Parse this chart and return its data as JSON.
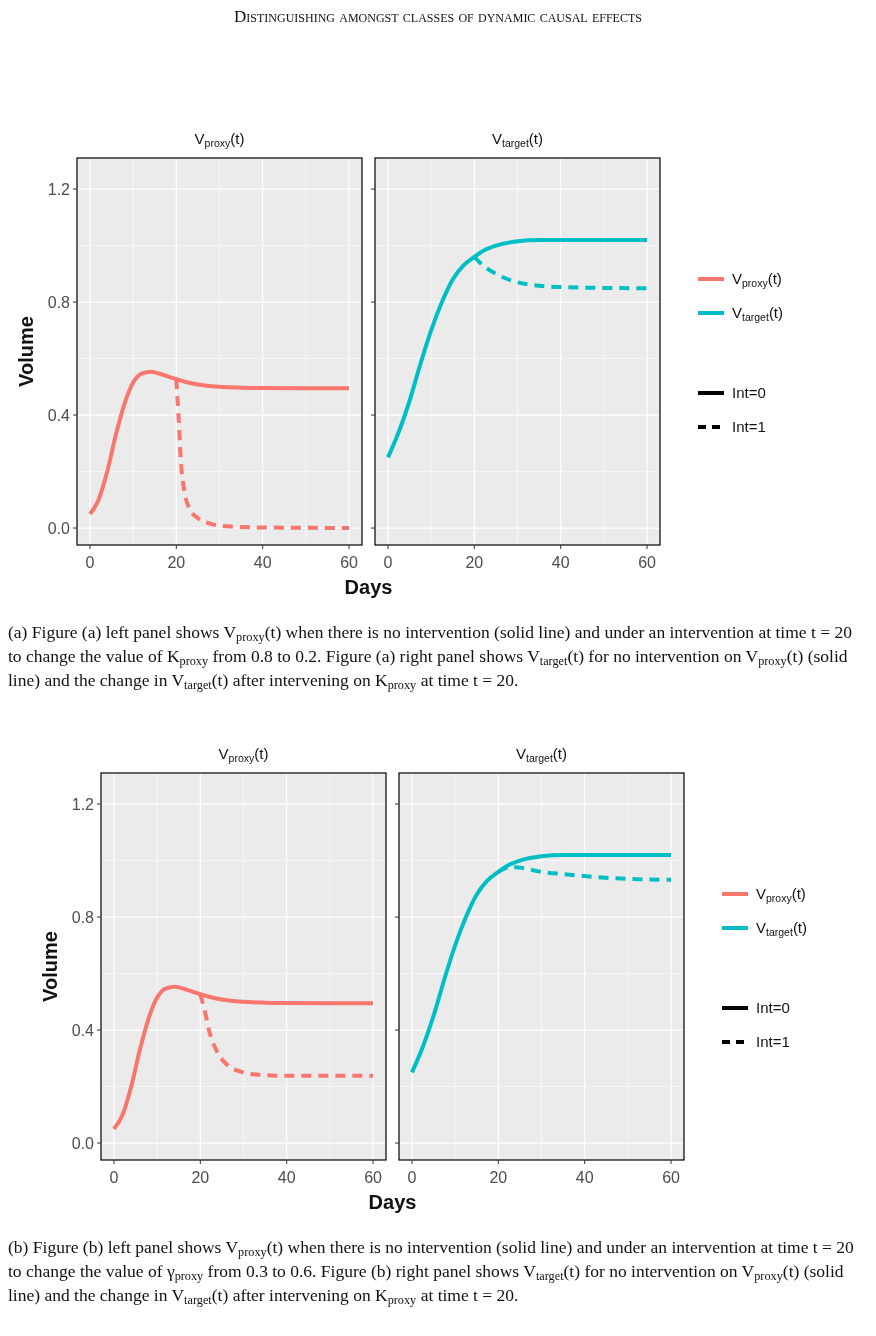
{
  "chart_data": [
    {
      "type": "line",
      "title": "V$_{proxy}$(t)",
      "xlabel": "Days",
      "ylabel": "Volume",
      "xlim": [
        -3,
        63
      ],
      "ylim": [
        -0.06,
        1.31
      ],
      "xticks": [
        0,
        {
          "value": 10,
          "label": null
        },
        20,
        {
          "value": 30,
          "label": null
        },
        40,
        {
          "value": 50,
          "label": null
        },
        60
      ],
      "yticks": [
        {
          "value": 0,
          "label": "0.0"
        },
        {
          "value": 0.2,
          "label": null
        },
        0.4,
        {
          "value": 0.6,
          "label": null
        },
        0.8,
        {
          "value": 1.0,
          "label": null
        },
        1.2
      ],
      "grid": true,
      "legend": "right",
      "series": [
        {
          "name": "V$_{proxy}$(t)",
          "color": "#f8766d",
          "line_style": "solid",
          "x": [
            0,
            2,
            4,
            6,
            8,
            10,
            12,
            14,
            16,
            18,
            20,
            22,
            25,
            30,
            35,
            40,
            50,
            60
          ],
          "values": [
            0.05,
            0.1,
            0.2,
            0.33,
            0.44,
            0.515,
            0.547,
            0.553,
            0.547,
            0.537,
            0.527,
            0.518,
            0.508,
            0.5,
            0.497,
            0.496,
            0.495,
            0.495
          ]
        },
        {
          "color": "#f8766d",
          "line_style": "dashed",
          "x": [
            20,
            20.5,
            21,
            22,
            23,
            25,
            28,
            32,
            40,
            50,
            60
          ],
          "values": [
            0.527,
            0.4,
            0.25,
            0.12,
            0.07,
            0.035,
            0.015,
            0.006,
            0.002,
            0.001,
            0.0
          ]
        }
      ],
      "annotations": [
        "Distinguishing amongst classes of dynamic causal effects",
        "(a) Figure (a) left panel shows V$_{proxy}$(t) when there is no intervention (solid line) and under an intervention at time t = 20 to change the value of K$_{proxy}$ from 0.8 to 0.2. Figure (a) right panel shows V$_{target}$(t) for no intervention on V$_{proxy}$(t) (solid line) and the change in V$_{target}$(t) after intervening on K$_{proxy}$ at time t = 20."
      ]
    },
    {
      "type": "line",
      "title": "V$_{target}$(t)",
      "xlim": [
        -3,
        63
      ],
      "ylim": [
        -0.06,
        1.31
      ],
      "tick_labels": "x",
      "xticks": [
        0,
        {
          "value": 10,
          "label": null
        },
        20,
        {
          "value": 30,
          "label": null
        },
        40,
        {
          "value": 50,
          "label": null
        },
        60
      ],
      "yticks": [
        0,
        {
          "value": 0.2,
          "label": null
        },
        0.4,
        {
          "value": 0.6,
          "label": null
        },
        0.8,
        {
          "value": 1.0,
          "label": null
        },
        1.2
      ],
      "grid": true,
      "legend": "right",
      "series": [
        {
          "name": "V$_{target}$(t)",
          "color": "#00bfc4",
          "line_style": "solid",
          "x": [
            0,
            2.5,
            5,
            7.5,
            10,
            12.5,
            15,
            17.5,
            20,
            22.5,
            25,
            30,
            35,
            40,
            50,
            60
          ],
          "values": [
            0.25,
            0.34,
            0.45,
            0.58,
            0.7,
            0.8,
            0.88,
            0.93,
            0.96,
            0.985,
            1.0,
            1.015,
            1.02,
            1.02,
            1.02,
            1.02
          ]
        },
        {
          "color": "#00bfc4",
          "line_style": "dashed",
          "x": [
            20,
            22,
            25,
            30,
            35,
            40,
            50,
            60
          ],
          "values": [
            0.96,
            0.93,
            0.9,
            0.87,
            0.858,
            0.853,
            0.85,
            0.849
          ]
        }
      ],
      "annotations": [
        "Int=0",
        "Int=1"
      ]
    },
    {
      "type": "line",
      "title": "V$_{proxy}$(t)",
      "xlabel": "Days",
      "ylabel": "Volume",
      "xlim": [
        -3,
        63
      ],
      "ylim": [
        -0.06,
        1.31
      ],
      "xticks": [
        0,
        {
          "value": 10,
          "label": null
        },
        20,
        {
          "value": 30,
          "label": null
        },
        40,
        {
          "value": 50,
          "label": null
        },
        60
      ],
      "yticks": [
        {
          "value": 0,
          "label": "0.0"
        },
        {
          "value": 0.2,
          "label": null
        },
        0.4,
        {
          "value": 0.6,
          "label": null
        },
        0.8,
        {
          "value": 1.0,
          "label": null
        },
        1.2
      ],
      "grid": true,
      "legend": "right",
      "series": [
        {
          "name": "V$_{proxy}$(t)",
          "color": "#f8766d",
          "line_style": "solid",
          "x": [
            0,
            2,
            4,
            6,
            8,
            10,
            12,
            14,
            16,
            18,
            20,
            22,
            25,
            30,
            35,
            40,
            50,
            60
          ],
          "values": [
            0.05,
            0.1,
            0.2,
            0.33,
            0.44,
            0.515,
            0.547,
            0.553,
            0.547,
            0.537,
            0.527,
            0.518,
            0.508,
            0.5,
            0.497,
            0.496,
            0.495,
            0.495
          ]
        },
        {
          "color": "#f8766d",
          "line_style": "dashed",
          "x": [
            20,
            21,
            22,
            24,
            26,
            30,
            35,
            40,
            50,
            60
          ],
          "values": [
            0.527,
            0.47,
            0.4,
            0.32,
            0.28,
            0.25,
            0.24,
            0.238,
            0.238,
            0.238
          ]
        }
      ],
      "annotations": [
        "(b) Figure (b) left panel shows V$_{proxy}$(t) when there is no intervention (solid line) and under an intervention at time t = 20 to change the value of γ$_{proxy}$ from 0.3 to 0.6. Figure (b) right panel shows V$_{target}$(t) for no intervention on V$_{proxy}$(t) (solid line) and the change in V$_{target}$(t) after intervening on K$_{proxy}$ at time t = 20."
      ]
    },
    {
      "type": "line",
      "title": "V$_{target}$(t)",
      "xlim": [
        -3,
        63
      ],
      "ylim": [
        -0.06,
        1.31
      ],
      "tick_labels": "x",
      "xticks": [
        0,
        {
          "value": 10,
          "label": null
        },
        20,
        {
          "value": 30,
          "label": null
        },
        40,
        {
          "value": 50,
          "label": null
        },
        60
      ],
      "yticks": [
        0,
        {
          "value": 0.2,
          "label": null
        },
        0.4,
        {
          "value": 0.6,
          "label": null
        },
        0.8,
        {
          "value": 1.0,
          "label": null
        },
        1.2
      ],
      "grid": true,
      "legend": "right",
      "series": [
        {
          "name": "V$_{target}$(t)",
          "color": "#00bfc4",
          "line_style": "solid",
          "x": [
            0,
            2.5,
            5,
            7.5,
            10,
            12.5,
            15,
            17.5,
            20,
            22.5,
            25,
            30,
            35,
            40,
            50,
            60
          ],
          "values": [
            0.25,
            0.34,
            0.45,
            0.58,
            0.7,
            0.8,
            0.88,
            0.93,
            0.96,
            0.985,
            1.0,
            1.015,
            1.02,
            1.02,
            1.02,
            1.02
          ]
        },
        {
          "color": "#00bfc4",
          "line_style": "dashed",
          "x": [
            20,
            22,
            23,
            25,
            30,
            35,
            40,
            50,
            60
          ],
          "values": [
            0.96,
            0.975,
            0.978,
            0.975,
            0.96,
            0.952,
            0.945,
            0.935,
            0.932
          ]
        }
      ],
      "annotations": [
        "Int=0",
        "Int=1"
      ]
    }
  ]
}
